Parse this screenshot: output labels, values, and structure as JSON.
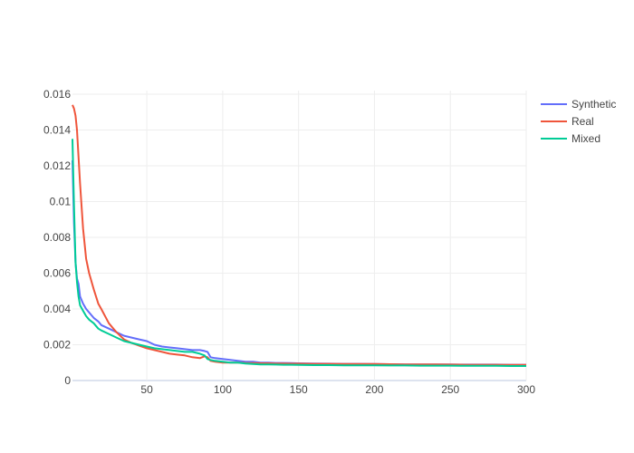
{
  "chart_data": {
    "type": "line",
    "title": "",
    "xlabel": "",
    "ylabel": "",
    "xlim": [
      1,
      300
    ],
    "ylim": [
      0,
      0.0162
    ],
    "x_ticks": [
      50,
      100,
      150,
      200,
      250,
      300
    ],
    "y_ticks": [
      0,
      0.002,
      0.004,
      0.006,
      0.008,
      0.01,
      0.012,
      0.014,
      0.016
    ],
    "x_tick_labels": [
      "50",
      "100",
      "150",
      "200",
      "250",
      "300"
    ],
    "y_tick_labels": [
      "0",
      "0.002",
      "0.004",
      "0.006",
      "0.008",
      "0.01",
      "0.012",
      "0.014",
      "0.016"
    ],
    "grid": true,
    "legend_position": "top-right",
    "x": [
      1,
      2,
      3,
      4,
      5,
      6,
      8,
      10,
      12,
      15,
      18,
      20,
      25,
      30,
      35,
      40,
      45,
      50,
      55,
      60,
      65,
      70,
      75,
      80,
      85,
      88,
      90,
      92,
      95,
      100,
      105,
      110,
      115,
      120,
      125,
      130,
      135,
      140,
      145,
      150,
      160,
      170,
      180,
      190,
      200,
      210,
      220,
      230,
      240,
      250,
      260,
      270,
      280,
      290,
      300
    ],
    "series": [
      {
        "name": "Synthetic",
        "color": "#636efa",
        "values": [
          0.0123,
          0.0088,
          0.0066,
          0.0057,
          0.0054,
          0.0047,
          0.0043,
          0.004,
          0.0038,
          0.0035,
          0.0033,
          0.0031,
          0.0029,
          0.0027,
          0.0025,
          0.0024,
          0.0023,
          0.0022,
          0.002,
          0.0019,
          0.00185,
          0.0018,
          0.00175,
          0.0017,
          0.0017,
          0.00165,
          0.0016,
          0.0013,
          0.00125,
          0.0012,
          0.00115,
          0.0011,
          0.00105,
          0.00105,
          0.001,
          0.001,
          0.00098,
          0.00098,
          0.00097,
          0.00096,
          0.00095,
          0.00094,
          0.00093,
          0.00093,
          0.00092,
          0.00091,
          0.0009,
          0.0009,
          0.0009,
          0.0009,
          0.00089,
          0.00089,
          0.00089,
          0.00088,
          0.00088
        ]
      },
      {
        "name": "Real",
        "color": "#ef553b",
        "values": [
          0.0154,
          0.0152,
          0.0148,
          0.014,
          0.0125,
          0.011,
          0.0085,
          0.0068,
          0.006,
          0.0051,
          0.0043,
          0.004,
          0.0032,
          0.0027,
          0.0023,
          0.0021,
          0.00195,
          0.0018,
          0.0017,
          0.0016,
          0.0015,
          0.00145,
          0.0014,
          0.0013,
          0.00125,
          0.00135,
          0.0013,
          0.0011,
          0.00105,
          0.001,
          0.001,
          0.001,
          0.00098,
          0.00097,
          0.00096,
          0.00096,
          0.00095,
          0.00095,
          0.00094,
          0.00094,
          0.00093,
          0.00093,
          0.00092,
          0.00092,
          0.00092,
          0.00091,
          0.0009,
          0.0009,
          0.0009,
          0.00089,
          0.00088,
          0.00088,
          0.00088,
          0.00087,
          0.00087
        ]
      },
      {
        "name": "Mixed",
        "color": "#00cc96",
        "values": [
          0.0135,
          0.0098,
          0.0066,
          0.0055,
          0.0047,
          0.0042,
          0.0039,
          0.0036,
          0.0034,
          0.0032,
          0.0029,
          0.0028,
          0.0026,
          0.0024,
          0.0022,
          0.0021,
          0.002,
          0.0019,
          0.0018,
          0.00175,
          0.0017,
          0.00165,
          0.0016,
          0.0016,
          0.0015,
          0.0014,
          0.0012,
          0.00115,
          0.0011,
          0.00105,
          0.001,
          0.001,
          0.00095,
          0.00092,
          0.0009,
          0.0009,
          0.00089,
          0.00088,
          0.00088,
          0.00087,
          0.00086,
          0.00086,
          0.00085,
          0.00085,
          0.00085,
          0.00084,
          0.00084,
          0.00083,
          0.00083,
          0.00083,
          0.00082,
          0.00082,
          0.00082,
          0.00081,
          0.00081
        ]
      }
    ]
  }
}
